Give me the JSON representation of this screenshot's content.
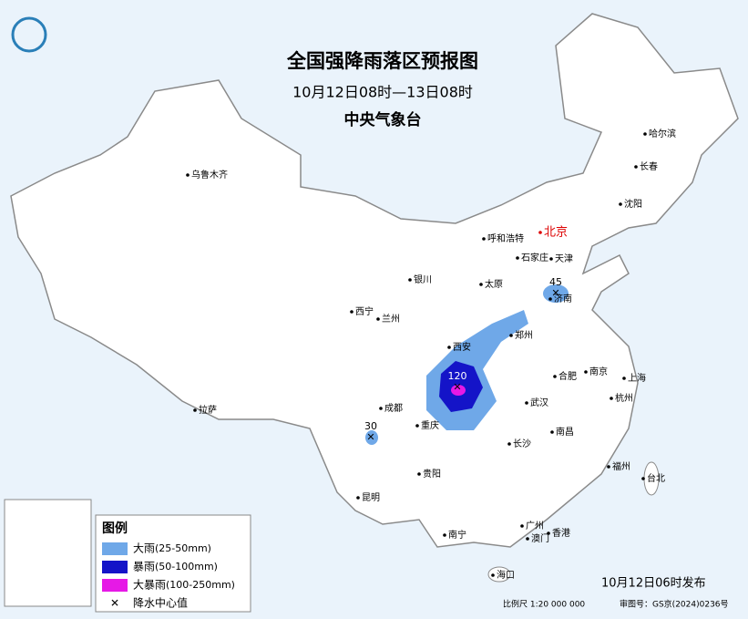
{
  "header": {
    "title": "全国强降雨落区预报图",
    "time_range": "10月12日08时—13日08时",
    "issuer": "中央气象台"
  },
  "cities": [
    "乌鲁木齐",
    "哈尔滨",
    "长春",
    "沈阳",
    "呼和浩特",
    "北京",
    "天津",
    "石家庄",
    "太原",
    "银川",
    "济南",
    "西宁",
    "兰州",
    "郑州",
    "西安",
    "合肥",
    "南京",
    "上海",
    "成都",
    "武汉",
    "杭州",
    "拉萨",
    "重庆",
    "南昌",
    "长沙",
    "福州",
    "台北",
    "贵阳",
    "昆明",
    "南宁",
    "广州",
    "澳门",
    "香港",
    "海口"
  ],
  "centers": [
    45,
    120,
    30
  ],
  "legend": {
    "title": "图例",
    "items": [
      {
        "label": "大雨",
        "range": "(25-50mm)"
      },
      {
        "label": "暴雨",
        "range": "(50-100mm)"
      },
      {
        "label": "大暴雨",
        "range": "(100-250mm)"
      },
      {
        "label": "降水中心值"
      }
    ]
  },
  "footer": {
    "issued": "10月12日06时发布",
    "scale": "比例尺 1:20 000 000",
    "review": "审图号：GS京(2024)0236号"
  }
}
